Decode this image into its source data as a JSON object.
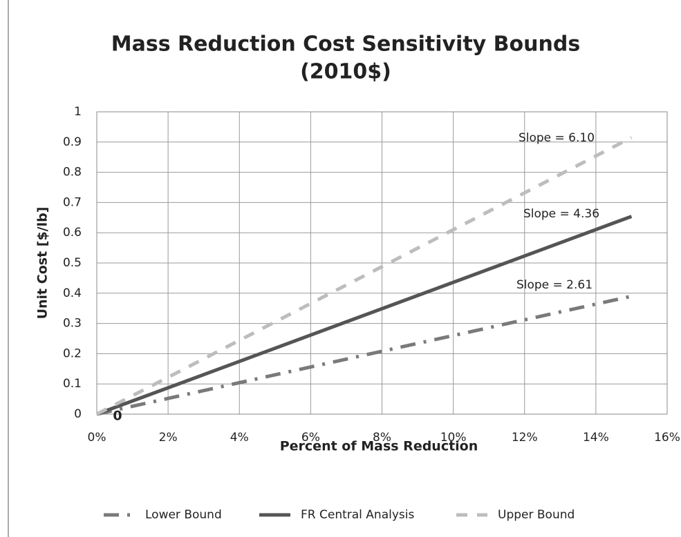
{
  "chart_data": {
    "type": "line",
    "title": "Mass Reduction Cost Sensitivity Bounds",
    "subtitle": "(2010$)",
    "x_label": "Percent of Mass Reduction",
    "y_label": "Unit Cost [$/lb]",
    "x": [
      0,
      15
    ],
    "series": [
      {
        "name": "Lower Bound",
        "color": "#7a7a7a",
        "dash": "dashdot",
        "values": [
          0,
          0.39
        ]
      },
      {
        "name": "FR Central Analysis",
        "color": "#555555",
        "dash": "solid",
        "values": [
          0,
          0.654
        ]
      },
      {
        "name": "Upper Bound",
        "color": "#bdbdbd",
        "dash": "dash",
        "values": [
          0,
          0.915
        ]
      }
    ],
    "annotations": [
      "Slope = 2.61",
      "Slope = 4.36",
      "Slope = 6.10",
      "0"
    ],
    "xlim": [
      0,
      16
    ],
    "ylim": [
      0,
      1
    ],
    "xticks": [
      {
        "value": 0,
        "label": "0%"
      },
      {
        "value": 2,
        "label": "2%"
      },
      {
        "value": 4,
        "label": "4%"
      },
      {
        "value": 6,
        "label": "6%"
      },
      {
        "value": 8,
        "label": "8%"
      },
      {
        "value": 10,
        "label": "10%"
      },
      {
        "value": 12,
        "label": "12%"
      },
      {
        "value": 14,
        "label": "14%"
      },
      {
        "value": 16,
        "label": "16%"
      }
    ],
    "yticks": [
      0,
      0.1,
      0.2,
      0.3,
      0.4,
      0.5,
      0.6,
      0.7,
      0.8,
      0.9,
      1
    ],
    "grid": true,
    "legend": "bottom"
  }
}
